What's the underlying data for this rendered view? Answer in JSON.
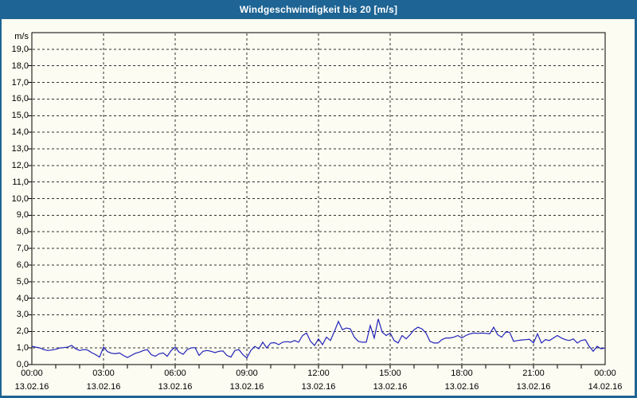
{
  "window": {
    "title": "Windgeschwindigkeit bis 20 [m/s]"
  },
  "colors": {
    "titlebar_bg": "#1E6494",
    "title_text": "#FFFFFF",
    "window_bg": "#FCFCF2",
    "window_border": "#1E6494",
    "plot_border": "#000000",
    "gridline": "#303030",
    "tick": "#000000",
    "label_text": "#000000",
    "line": "#2222BB"
  },
  "chart_data": {
    "type": "line",
    "title": "Windgeschwindigkeit bis 20 [m/s]",
    "unit": "m/s",
    "ylabel": "m/s",
    "ylim": [
      0,
      20
    ],
    "y_tick_step": 1,
    "y_tick_labels": [
      "0,0",
      "1,0",
      "2,0",
      "3,0",
      "4,0",
      "5,0",
      "6,0",
      "7,0",
      "8,0",
      "9,0",
      "10,0",
      "11,0",
      "12,0",
      "13,0",
      "14,0",
      "15,0",
      "16,0",
      "17,0",
      "18,0",
      "19,0"
    ],
    "x_hours_span": 24,
    "x_grid_every_hours": 3,
    "x_minor_tick_every_hours": 1,
    "grid": "dashed",
    "x_major_ticks": [
      {
        "hour": 0,
        "time": "00:00",
        "date": "13.02.16"
      },
      {
        "hour": 3,
        "time": "03:00",
        "date": "13.02.16"
      },
      {
        "hour": 6,
        "time": "06:00",
        "date": "13.02.16"
      },
      {
        "hour": 9,
        "time": "09:00",
        "date": "13.02.16"
      },
      {
        "hour": 12,
        "time": "12:00",
        "date": "13.02.16"
      },
      {
        "hour": 15,
        "time": "15:00",
        "date": "13.02.16"
      },
      {
        "hour": 18,
        "time": "18:00",
        "date": "13.02.16"
      },
      {
        "hour": 21,
        "time": "21:00",
        "date": "13.02.16"
      },
      {
        "hour": 24,
        "time": "00:00",
        "date": "14.02.16"
      }
    ],
    "series": [
      {
        "name": "Windgeschwindigkeit",
        "unit": "m/s",
        "start": "13.02.16 00:00",
        "end": "14.02.16 00:00",
        "sample_interval_minutes": 10,
        "values": [
          1.1,
          1.05,
          1.0,
          0.9,
          0.85,
          0.88,
          0.92,
          1.0,
          1.02,
          1.05,
          1.15,
          0.95,
          0.85,
          0.9,
          0.88,
          0.72,
          0.6,
          0.45,
          1.05,
          0.78,
          0.68,
          0.65,
          0.7,
          0.55,
          0.42,
          0.55,
          0.68,
          0.75,
          0.85,
          0.9,
          0.6,
          0.5,
          0.65,
          0.7,
          0.5,
          0.85,
          1.05,
          0.75,
          0.62,
          0.9,
          1.0,
          1.02,
          0.55,
          0.8,
          0.85,
          0.8,
          0.72,
          0.8,
          0.82,
          0.55,
          0.45,
          0.85,
          0.9,
          0.6,
          0.4,
          0.85,
          1.1,
          0.95,
          1.35,
          1.0,
          1.3,
          1.32,
          1.2,
          1.35,
          1.38,
          1.35,
          1.45,
          1.35,
          1.75,
          1.9,
          1.4,
          1.15,
          1.55,
          1.2,
          1.65,
          1.45,
          2.0,
          2.6,
          2.1,
          2.2,
          2.15,
          1.65,
          1.4,
          1.35,
          1.35,
          2.35,
          1.6,
          2.75,
          1.95,
          1.75,
          1.9,
          1.45,
          1.3,
          1.75,
          1.55,
          1.8,
          2.1,
          2.25,
          2.15,
          1.9,
          1.4,
          1.3,
          1.3,
          1.5,
          1.6,
          1.6,
          1.65,
          1.75,
          1.6,
          1.75,
          1.85,
          1.9,
          1.88,
          1.9,
          1.88,
          1.85,
          2.25,
          1.8,
          1.65,
          1.95,
          1.95,
          1.4,
          1.45,
          1.48,
          1.5,
          1.52,
          1.3,
          1.85,
          1.3,
          1.5,
          1.45,
          1.6,
          1.75,
          1.6,
          1.5,
          1.45,
          1.55,
          1.3,
          1.45,
          1.5,
          1.1,
          0.8,
          1.1,
          0.95,
          1.0
        ]
      }
    ]
  }
}
